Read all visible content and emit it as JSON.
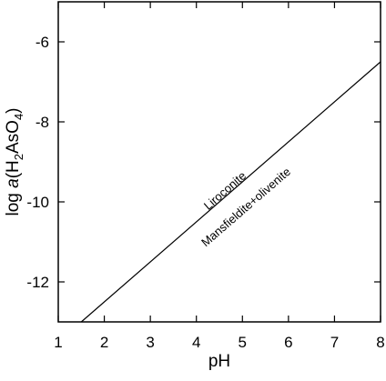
{
  "chart_data": {
    "type": "line",
    "x_label": "pH",
    "y_label": [
      "log ",
      "a",
      "(H",
      "2",
      "AsO",
      "4",
      ")"
    ],
    "x": [
      1.5,
      8
    ],
    "series": [
      {
        "color": "#000000",
        "values": [
          -13,
          -6.5
        ]
      }
    ],
    "annotations": [
      "Liroconite",
      "Mansfieldite+olivenite"
    ],
    "xlim": [
      1,
      8
    ],
    "xticks": [
      1,
      2,
      3,
      4,
      5,
      6,
      7,
      8
    ],
    "ylim": [
      -13,
      -5
    ],
    "yticks": [
      -12,
      -10,
      -8,
      -6
    ]
  }
}
